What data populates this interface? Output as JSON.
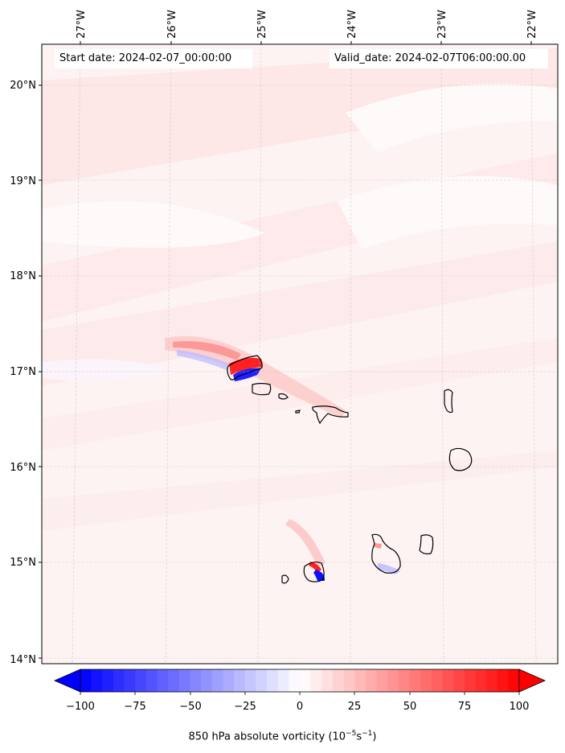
{
  "header": {
    "start_text": "Start date: 2024-02-07_00:00:00",
    "valid_text": "Valid_date: 2024-02-07T06:00:00.00"
  },
  "map": {
    "lon_labels": [
      "27°W",
      "26°W",
      "25°W",
      "24°W",
      "23°W",
      "22°W"
    ],
    "lat_labels": [
      "20°N",
      "19°N",
      "18°N",
      "17°N",
      "16°N",
      "15°N",
      "14°N"
    ],
    "gridlines": true,
    "field_colors": {
      "background": "#fdf3f3",
      "light_band": "#fcdcdc",
      "positive_core": "#ff2020",
      "negative_core": "#1010ff",
      "coastline": "#000000"
    }
  },
  "colorbar": {
    "ticks": [
      "−100",
      "−75",
      "−50",
      "−25",
      "0",
      "25",
      "50",
      "75",
      "100"
    ],
    "min": -100,
    "max": 100,
    "negative_color": "#0000ff",
    "positive_color": "#ff0000",
    "label": "850 hPa absolute vorticity (10",
    "label_exp1": "−5",
    "label_mid": "s",
    "label_exp2": "−1",
    "label_end": ")"
  }
}
